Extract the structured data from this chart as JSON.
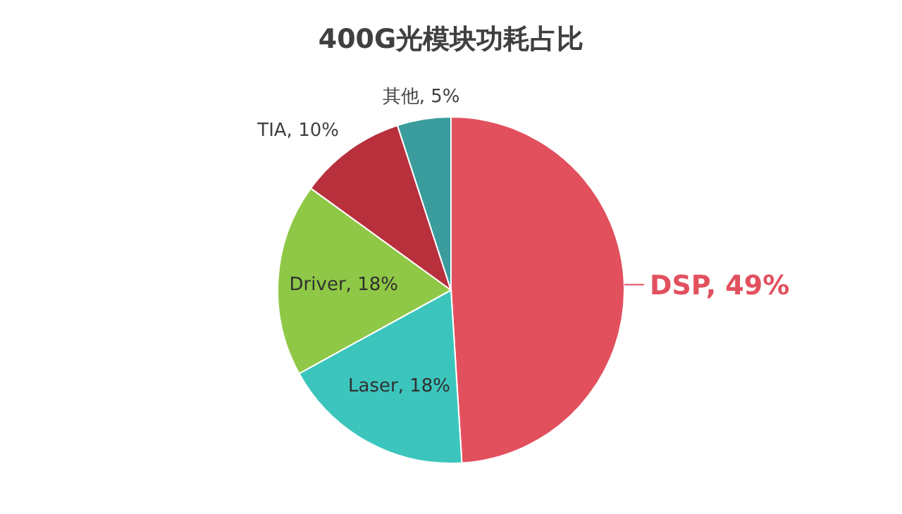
{
  "chart_data": {
    "type": "pie",
    "title": "400G光模块功耗占比",
    "categories": [
      "DSP",
      "Laser",
      "Driver",
      "TIA",
      "其他"
    ],
    "values": [
      49,
      18,
      18,
      10,
      5
    ],
    "value_labels": [
      "49%",
      "18%",
      "18%",
      "10%",
      "5%"
    ],
    "colors": [
      "#e2505e",
      "#3cc5bd",
      "#8fc846",
      "#b8303c",
      "#3a9c9c"
    ],
    "legend": false
  }
}
